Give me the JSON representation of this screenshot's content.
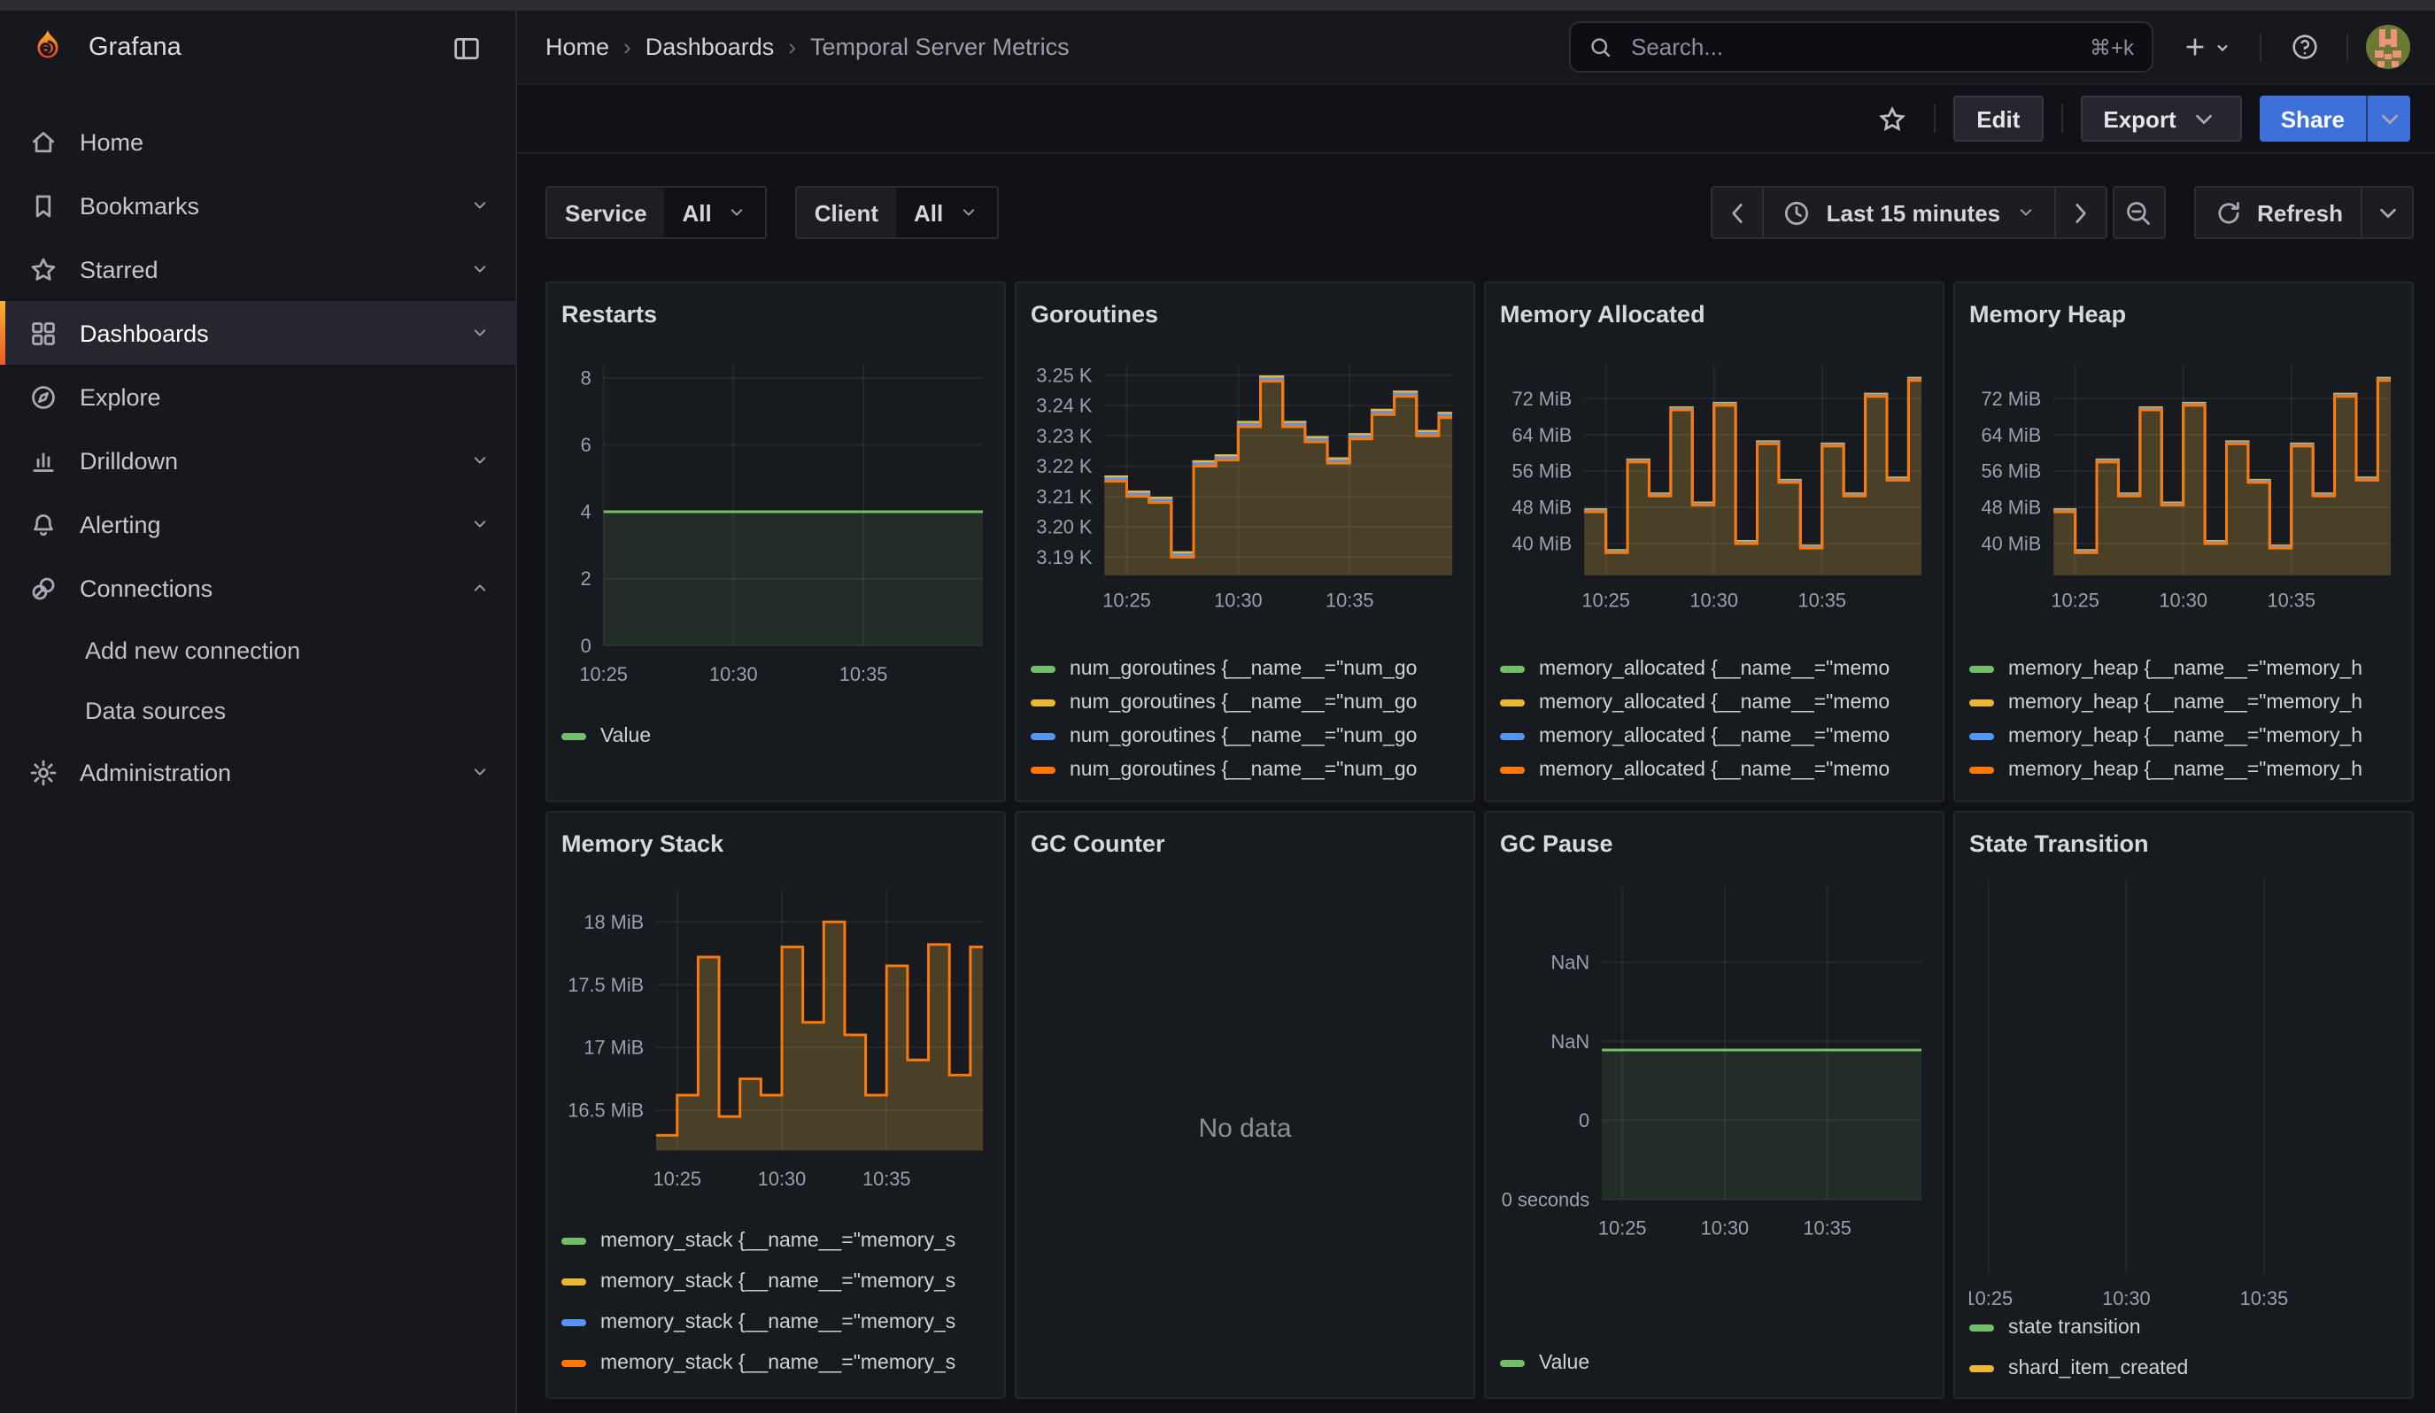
{
  "header": {
    "brand": "Grafana",
    "breadcrumb": [
      "Home",
      "Dashboards",
      "Temporal Server Metrics"
    ],
    "search": {
      "placeholder": "Search...",
      "shortcut": "⌘+k"
    },
    "icons": [
      "grafana-logo",
      "panel-toggle-icon",
      "search-icon",
      "plus-icon",
      "help-icon",
      "user-avatar"
    ]
  },
  "toolbar": {
    "edit_label": "Edit",
    "export_label": "Export",
    "share_label": "Share",
    "share_color": "#3d71d9"
  },
  "sidebar": {
    "items": [
      {
        "label": "Home",
        "icon": "home"
      },
      {
        "label": "Bookmarks",
        "icon": "bookmark",
        "chevron": "down"
      },
      {
        "label": "Starred",
        "icon": "star",
        "chevron": "down"
      },
      {
        "label": "Dashboards",
        "icon": "apps",
        "chevron": "down",
        "active": true
      },
      {
        "label": "Explore",
        "icon": "compass"
      },
      {
        "label": "Drilldown",
        "icon": "drilldown",
        "chevron": "down"
      },
      {
        "label": "Alerting",
        "icon": "bell",
        "chevron": "down"
      },
      {
        "label": "Connections",
        "icon": "connections",
        "chevron": "up",
        "children": [
          "Add new connection",
          "Data sources"
        ]
      },
      {
        "label": "Administration",
        "icon": "gear",
        "chevron": "down"
      }
    ]
  },
  "filters": {
    "service_label": "Service",
    "service_value": "All",
    "client_label": "Client",
    "client_value": "All"
  },
  "timebar": {
    "range_label": "Last 15 minutes",
    "refresh_label": "Refresh"
  },
  "panels": [
    {
      "title": "Restarts",
      "chart": "restarts"
    },
    {
      "title": "Goroutines",
      "chart": "goroutines"
    },
    {
      "title": "Memory Allocated",
      "chart": "memory_allocated"
    },
    {
      "title": "Memory Heap",
      "chart": "memory_heap"
    },
    {
      "title": "Memory Stack",
      "chart": "memory_stack"
    },
    {
      "title": "GC Counter",
      "chart": "gc_counter",
      "no_data_text": "No data"
    },
    {
      "title": "GC Pause",
      "chart": "gc_pause"
    },
    {
      "title": "State Transition",
      "chart": "state_transition"
    }
  ],
  "chart_data": [
    {
      "id": "restarts",
      "type": "area",
      "title": "Restarts",
      "xlabel": "",
      "ylabel": "",
      "ylim": [
        0,
        8.4
      ],
      "grid": true,
      "legend_position": "bottom",
      "yticks": [
        {
          "v": 8,
          "label": "8"
        },
        {
          "v": 6,
          "label": "6"
        },
        {
          "v": 4,
          "label": "4"
        },
        {
          "v": 2,
          "label": "2"
        },
        {
          "v": 0,
          "label": "0"
        }
      ],
      "xticks": [
        {
          "t": 1,
          "label": "10:25"
        },
        {
          "t": 6,
          "label": "10:30"
        },
        {
          "t": 11,
          "label": "10:35"
        }
      ],
      "series": [
        {
          "name": "Value",
          "color": "#73bf69",
          "offset": 0
        }
      ],
      "values": [
        [
          1,
          4
        ]
      ],
      "fill": "rgba(115,191,105,0.12)",
      "fill_base": 0,
      "legend": [
        {
          "color": "#73bf69",
          "label": "Value"
        }
      ]
    },
    {
      "id": "goroutines",
      "type": "area",
      "title": "Goroutines",
      "ylim": [
        3.184,
        3.2535
      ],
      "grid": true,
      "yticks": [
        {
          "v": 3.25,
          "label": "3.25 K"
        },
        {
          "v": 3.24,
          "label": "3.24 K"
        },
        {
          "v": 3.23,
          "label": "3.23 K"
        },
        {
          "v": 3.22,
          "label": "3.22 K"
        },
        {
          "v": 3.21,
          "label": "3.21 K"
        },
        {
          "v": 3.2,
          "label": "3.20 K"
        },
        {
          "v": 3.19,
          "label": "3.19 K"
        }
      ],
      "xticks": [
        {
          "t": 1,
          "label": "10:25"
        },
        {
          "t": 6,
          "label": "10:30"
        },
        {
          "t": 11,
          "label": "10:35"
        }
      ],
      "series": [
        {
          "name": "yellow",
          "color": "#eab839",
          "offset": 0.0015
        },
        {
          "name": "blue",
          "color": "#5794f2",
          "offset": 0.0008
        },
        {
          "name": "orange",
          "color": "#ff780a",
          "offset": 0
        }
      ],
      "values": [
        [
          0,
          3.215
        ],
        [
          1,
          3.21
        ],
        [
          2,
          3.208
        ],
        [
          3,
          3.19
        ],
        [
          4,
          3.22
        ],
        [
          5,
          3.222
        ],
        [
          6,
          3.233
        ],
        [
          7,
          3.248
        ],
        [
          8,
          3.233
        ],
        [
          9,
          3.228
        ],
        [
          10,
          3.221
        ],
        [
          11,
          3.229
        ],
        [
          12,
          3.237
        ],
        [
          13,
          3.243
        ],
        [
          14,
          3.23
        ],
        [
          15,
          3.236
        ]
      ],
      "fill": "rgba(210,170,62,0.27)",
      "fill_base": 3.184,
      "legend": [
        {
          "color": "#73bf69",
          "label": "num_goroutines {__name__=\"num_go"
        },
        {
          "color": "#eab839",
          "label": "num_goroutines {__name__=\"num_go"
        },
        {
          "color": "#5794f2",
          "label": "num_goroutines {__name__=\"num_go"
        },
        {
          "color": "#ff780a",
          "label": "num_goroutines {__name__=\"num_go"
        }
      ]
    },
    {
      "id": "memory_allocated",
      "type": "area",
      "title": "Memory Allocated",
      "ylim": [
        33,
        79.5
      ],
      "grid": true,
      "yticks": [
        {
          "v": 72,
          "label": "72 MiB"
        },
        {
          "v": 64,
          "label": "64 MiB"
        },
        {
          "v": 56,
          "label": "56 MiB"
        },
        {
          "v": 48,
          "label": "48 MiB"
        },
        {
          "v": 40,
          "label": "40 MiB"
        }
      ],
      "xticks": [
        {
          "t": 1,
          "label": "10:25"
        },
        {
          "t": 6,
          "label": "10:30"
        },
        {
          "t": 11,
          "label": "10:35"
        }
      ],
      "series": [
        {
          "name": "yellow",
          "color": "#eab839",
          "offset": 0.5
        },
        {
          "name": "blue",
          "color": "#5794f2",
          "offset": 0.25
        },
        {
          "name": "orange",
          "color": "#ff780a",
          "offset": 0
        }
      ],
      "values": [
        [
          0,
          47
        ],
        [
          1,
          38
        ],
        [
          2,
          58
        ],
        [
          3,
          50.5
        ],
        [
          4,
          69.5
        ],
        [
          5,
          48.5
        ],
        [
          6,
          70.5
        ],
        [
          7,
          40
        ],
        [
          8,
          62
        ],
        [
          9,
          53.5
        ],
        [
          10,
          39
        ],
        [
          11,
          61.5
        ],
        [
          12,
          50.5
        ],
        [
          13,
          72.5
        ],
        [
          14,
          54
        ],
        [
          15,
          76
        ]
      ],
      "fill": "rgba(210,170,62,0.27)",
      "fill_base": 33,
      "legend": [
        {
          "color": "#73bf69",
          "label": "memory_allocated {__name__=\"memo"
        },
        {
          "color": "#eab839",
          "label": "memory_allocated {__name__=\"memo"
        },
        {
          "color": "#5794f2",
          "label": "memory_allocated {__name__=\"memo"
        },
        {
          "color": "#ff780a",
          "label": "memory_allocated {__name__=\"memo"
        }
      ]
    },
    {
      "id": "memory_heap",
      "type": "area",
      "title": "Memory Heap",
      "ylim": [
        33,
        79.5
      ],
      "grid": true,
      "yticks": [
        {
          "v": 72,
          "label": "72 MiB"
        },
        {
          "v": 64,
          "label": "64 MiB"
        },
        {
          "v": 56,
          "label": "56 MiB"
        },
        {
          "v": 48,
          "label": "48 MiB"
        },
        {
          "v": 40,
          "label": "40 MiB"
        }
      ],
      "xticks": [
        {
          "t": 1,
          "label": "10:25"
        },
        {
          "t": 6,
          "label": "10:30"
        },
        {
          "t": 11,
          "label": "10:35"
        }
      ],
      "series": [
        {
          "name": "yellow",
          "color": "#eab839",
          "offset": 0.5
        },
        {
          "name": "blue",
          "color": "#5794f2",
          "offset": 0.25
        },
        {
          "name": "orange",
          "color": "#ff780a",
          "offset": 0
        }
      ],
      "values": [
        [
          0,
          47
        ],
        [
          1,
          38
        ],
        [
          2,
          58
        ],
        [
          3,
          50.5
        ],
        [
          4,
          69.5
        ],
        [
          5,
          48.5
        ],
        [
          6,
          70.5
        ],
        [
          7,
          40
        ],
        [
          8,
          62
        ],
        [
          9,
          53.5
        ],
        [
          10,
          39
        ],
        [
          11,
          61.5
        ],
        [
          12,
          50.5
        ],
        [
          13,
          72.5
        ],
        [
          14,
          54
        ],
        [
          15,
          76
        ]
      ],
      "fill": "rgba(210,170,62,0.27)",
      "fill_base": 33,
      "legend": [
        {
          "color": "#73bf69",
          "label": "memory_heap {__name__=\"memory_h"
        },
        {
          "color": "#eab839",
          "label": "memory_heap {__name__=\"memory_h"
        },
        {
          "color": "#5794f2",
          "label": "memory_heap {__name__=\"memory_h"
        },
        {
          "color": "#ff780a",
          "label": "memory_heap {__name__=\"memory_h"
        }
      ]
    },
    {
      "id": "memory_stack",
      "type": "area",
      "title": "Memory Stack",
      "ylim": [
        16.18,
        18.25
      ],
      "grid": true,
      "yticks": [
        {
          "v": 18,
          "label": "18 MiB"
        },
        {
          "v": 17.5,
          "label": "17.5 MiB"
        },
        {
          "v": 17,
          "label": "17 MiB"
        },
        {
          "v": 16.5,
          "label": "16.5 MiB"
        }
      ],
      "xticks": [
        {
          "t": 1,
          "label": "10:25"
        },
        {
          "t": 6,
          "label": "10:30"
        },
        {
          "t": 11,
          "label": "10:35"
        }
      ],
      "series": [
        {
          "name": "orange",
          "color": "#ff780a",
          "offset": 0
        }
      ],
      "values": [
        [
          0,
          16.3
        ],
        [
          1,
          16.62
        ],
        [
          2,
          17.72
        ],
        [
          3,
          16.45
        ],
        [
          4,
          16.75
        ],
        [
          5,
          16.62
        ],
        [
          6,
          17.8
        ],
        [
          7,
          17.2
        ],
        [
          8,
          18.0
        ],
        [
          9,
          17.1
        ],
        [
          10,
          16.62
        ],
        [
          11,
          17.65
        ],
        [
          12,
          16.9
        ],
        [
          13,
          17.82
        ],
        [
          14,
          16.78
        ],
        [
          15,
          17.8
        ]
      ],
      "fill": "rgba(210,170,62,0.27)",
      "fill_base": 16.18,
      "legend": [
        {
          "color": "#73bf69",
          "label": "memory_stack {__name__=\"memory_s"
        },
        {
          "color": "#eab839",
          "label": "memory_stack {__name__=\"memory_s"
        },
        {
          "color": "#5794f2",
          "label": "memory_stack {__name__=\"memory_s"
        },
        {
          "color": "#ff780a",
          "label": "memory_stack {__name__=\"memory_s"
        }
      ]
    },
    {
      "id": "gc_counter",
      "type": "none",
      "title": "GC Counter",
      "no_data_text": "No data"
    },
    {
      "id": "gc_pause",
      "type": "area",
      "title": "GC Pause",
      "ylim": [
        0,
        3.95
      ],
      "grid": true,
      "yticks": [
        {
          "v": 3,
          "label": "NaN"
        },
        {
          "v": 2,
          "label": "NaN"
        },
        {
          "v": 1,
          "label": "0"
        },
        {
          "v": 0,
          "label": "0 seconds"
        }
      ],
      "xticks": [
        {
          "t": 1,
          "label": "10:25"
        },
        {
          "t": 6,
          "label": "10:30"
        },
        {
          "t": 11,
          "label": "10:35"
        }
      ],
      "series": [
        {
          "name": "Value",
          "color": "#73bf69",
          "offset": 0
        }
      ],
      "values": [
        [
          0,
          1.89
        ]
      ],
      "fill": "rgba(115,191,105,0.12)",
      "fill_base": 0,
      "legend": [
        {
          "color": "#73bf69",
          "label": "Value"
        }
      ]
    },
    {
      "id": "state_transition",
      "type": "empty",
      "title": "State Transition",
      "ylim": [
        0,
        1
      ],
      "grid": true,
      "yticks": [],
      "xticks": [
        {
          "t": 1,
          "label": "10:25"
        },
        {
          "t": 6,
          "label": "10:30"
        },
        {
          "t": 11,
          "label": "10:35"
        }
      ],
      "series": [],
      "values": [],
      "legend": [
        {
          "color": "#73bf69",
          "label": "state transition"
        },
        {
          "color": "#eab839",
          "label": "shard_item_created"
        }
      ]
    }
  ]
}
